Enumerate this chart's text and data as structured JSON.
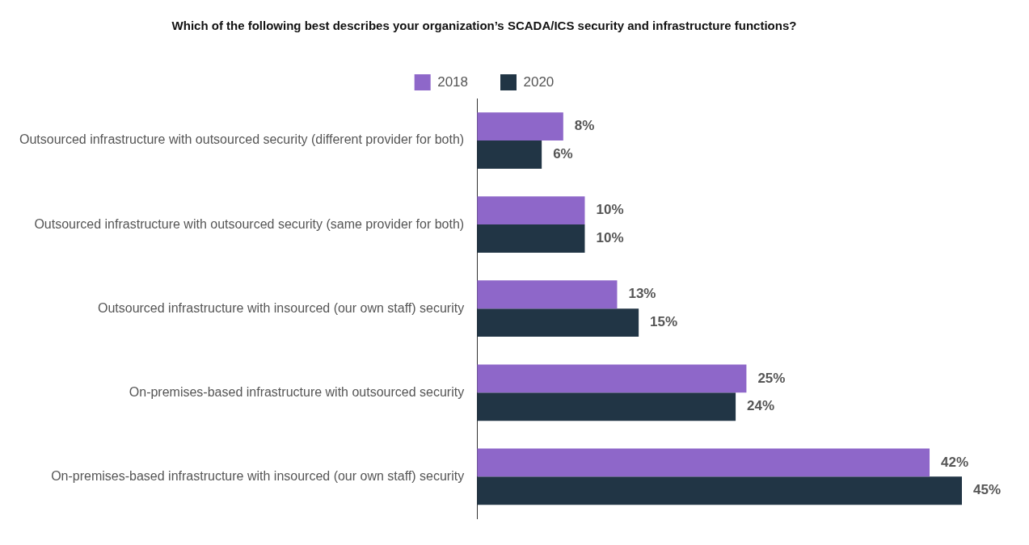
{
  "chart_data": {
    "type": "bar",
    "orientation": "horizontal",
    "title": "Which of the following best describes your organization’s SCADA/ICS security and infrastructure functions?",
    "categories": [
      "Outsourced infrastructure with outsourced security (different provider for both)",
      "Outsourced infrastructure with outsourced security (same provider for both)",
      "Outsourced infrastructure with insourced (our own staff) security",
      "On-premises-based infrastructure with outsourced security",
      "On-premises-based infrastructure with insourced (our own staff) security"
    ],
    "series": [
      {
        "name": "2018",
        "color": "#8e67c9",
        "values": [
          8,
          10,
          13,
          25,
          42
        ],
        "value_labels": [
          "8%",
          "10%",
          "13%",
          "25%",
          "42%"
        ]
      },
      {
        "name": "2020",
        "color": "#213545",
        "values": [
          6,
          10,
          15,
          24,
          45
        ],
        "value_labels": [
          "6%",
          "10%",
          "15%",
          "24%",
          "45%"
        ]
      }
    ],
    "legend": "top",
    "grid": false,
    "tick_labels": "y"
  }
}
